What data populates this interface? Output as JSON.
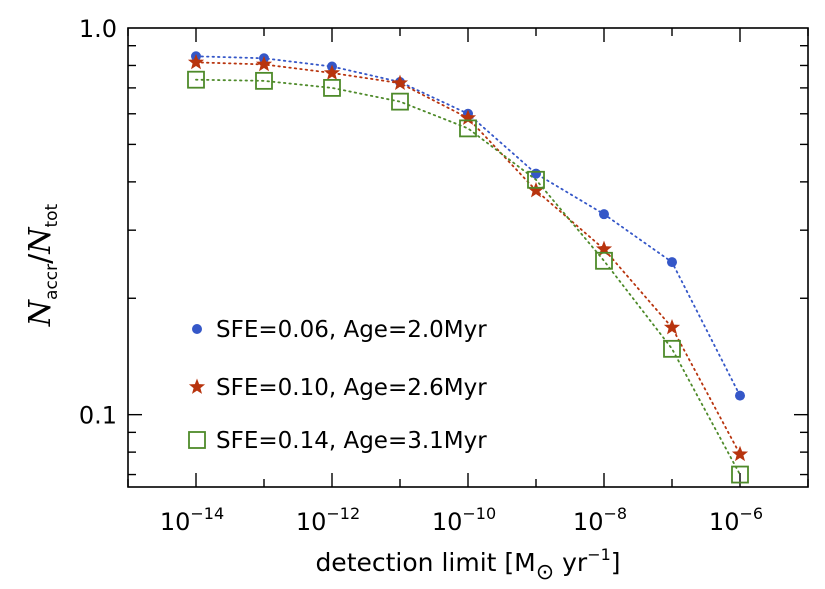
{
  "chart_data": {
    "type": "line",
    "x_scale": "log",
    "y_scale": "log",
    "xlim": [
      1e-15,
      1e-05
    ],
    "ylim": [
      0.065,
      1.0
    ],
    "x": [
      1e-14,
      1e-13,
      1e-12,
      1e-11,
      1e-10,
      1e-09,
      1e-08,
      1e-07,
      1e-06
    ],
    "xticks": [
      {
        "value": 1e-14,
        "base": "10",
        "exp": "−14"
      },
      {
        "value": 1e-12,
        "base": "10",
        "exp": "−12"
      },
      {
        "value": 1e-10,
        "base": "10",
        "exp": "−10"
      },
      {
        "value": 1e-08,
        "base": "10",
        "exp": "−8"
      },
      {
        "value": 1e-06,
        "base": "10",
        "exp": "−6"
      }
    ],
    "yticks": [
      {
        "value": 1.0,
        "label": "1.0"
      },
      {
        "value": 0.1,
        "label": "0.1"
      }
    ],
    "xlabel": {
      "prefix": "detection limit [M",
      "sun": "⊙",
      "unit": " yr",
      "exp": "−1",
      "suffix": "]"
    },
    "ylabel": {
      "num": "N",
      "num_sub": "accr",
      "slash": "/",
      "den": "N",
      "den_sub": "tot"
    },
    "series": [
      {
        "name": "SFE=0.06, Age=2.0Myr",
        "marker": "circle",
        "color": "#3557c8",
        "values": [
          0.845,
          0.835,
          0.795,
          0.725,
          0.6,
          0.42,
          0.33,
          0.248,
          0.112
        ]
      },
      {
        "name": "SFE=0.10, Age=2.6Myr",
        "marker": "star",
        "color": "#b8340e",
        "values": [
          0.815,
          0.805,
          0.765,
          0.72,
          0.585,
          0.38,
          0.268,
          0.168,
          0.079
        ]
      },
      {
        "name": "SFE=0.14, Age=3.1Myr",
        "marker": "square",
        "color": "#4e8a2a",
        "values": [
          0.735,
          0.73,
          0.7,
          0.645,
          0.55,
          0.405,
          0.25,
          0.148,
          0.07
        ]
      }
    ]
  }
}
